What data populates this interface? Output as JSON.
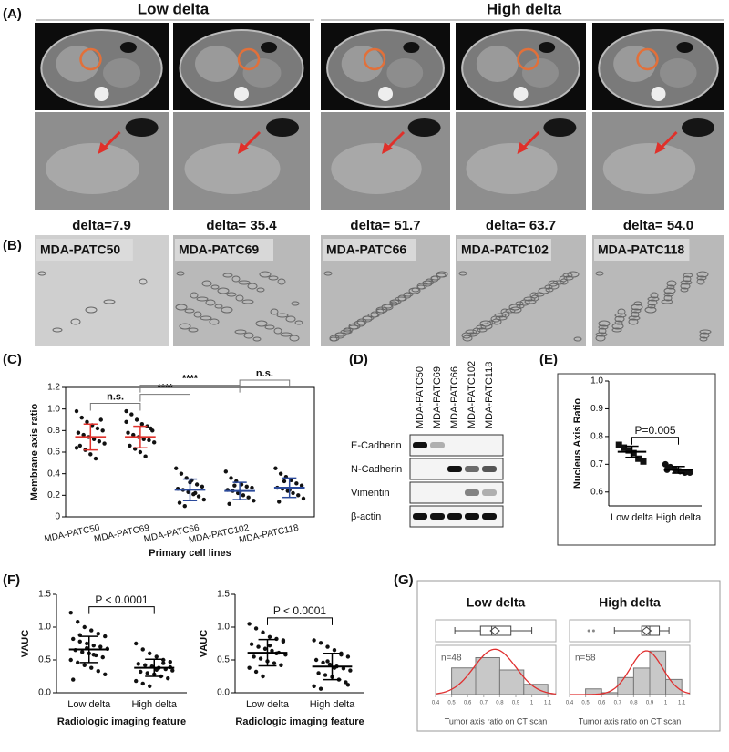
{
  "panel_labels": [
    "(A)",
    "(B)",
    "(C)",
    "(D)",
    "(E)",
    "(F)",
    "(G)"
  ],
  "panel_a": {
    "groups": [
      "Low delta",
      "High delta"
    ],
    "deltas": [
      "delta=7.9",
      "delta= 35.4",
      "delta= 51.7",
      "delta= 63.7",
      "delta= 54.0"
    ]
  },
  "panel_b": {
    "cell_lines": [
      "MDA-PATC50",
      "MDA-PATC69",
      "MDA-PATC66",
      "MDA-PATC102",
      "MDA-PATC118"
    ]
  },
  "panel_d": {
    "lanes": [
      "MDA-PATC50",
      "MDA-PATC69",
      "MDA-PATC66",
      "MDA-PATC102",
      "MDA-PATC118"
    ],
    "rows": [
      "E-Cadherin",
      "N-Cadherin",
      "Vimentin",
      "β-actin"
    ]
  },
  "chart_data": [
    {
      "type": "dotplot",
      "xlabel": "Primary cell lines",
      "ylabel": "Membrane axis ratio",
      "categories": [
        "MDA-PATC50",
        "MDA-PATC69",
        "MDA-PATC66",
        "MDA-PATC102",
        "MDA-PATC118"
      ],
      "ylim": [
        0,
        1.2
      ],
      "yticks": [
        0,
        0.2,
        0.4,
        0.6,
        0.8,
        {
          "value": 1,
          "label": "1.0"
        },
        1.2
      ],
      "means": [
        0.74,
        0.74,
        0.25,
        0.24,
        0.27
      ],
      "sd": [
        0.12,
        0.1,
        0.1,
        0.08,
        0.09
      ],
      "error_colors": [
        "#e0302a",
        "#e0302a",
        "#2b4a9b",
        "#2b4a9b",
        "#2b4a9b"
      ],
      "points": [
        [
          0.98,
          0.92,
          0.88,
          0.85,
          0.82,
          0.8,
          0.78,
          0.76,
          0.74,
          0.72,
          0.7,
          0.68,
          0.66,
          0.62,
          0.58,
          0.54,
          0.9,
          0.64
        ],
        [
          0.98,
          0.95,
          0.9,
          0.86,
          0.84,
          0.8,
          0.78,
          0.76,
          0.74,
          0.72,
          0.71,
          0.69,
          0.66,
          0.63,
          0.6,
          0.56,
          0.82,
          0.88
        ],
        [
          0.45,
          0.4,
          0.36,
          0.34,
          0.3,
          0.28,
          0.26,
          0.25,
          0.23,
          0.21,
          0.19,
          0.16,
          0.13,
          0.1,
          0.32,
          0.22
        ],
        [
          0.42,
          0.36,
          0.33,
          0.3,
          0.28,
          0.27,
          0.25,
          0.24,
          0.22,
          0.2,
          0.18,
          0.15,
          0.12,
          0.29,
          0.23
        ],
        [
          0.45,
          0.4,
          0.37,
          0.34,
          0.31,
          0.29,
          0.27,
          0.26,
          0.24,
          0.22,
          0.2,
          0.17,
          0.14,
          0.33,
          0.25
        ]
      ],
      "annotations": [
        {
          "text": "n.s.",
          "between": [
            0,
            1
          ]
        },
        {
          "text": "****",
          "between": [
            1,
            2
          ]
        },
        {
          "text": "****",
          "between": [
            1,
            3
          ]
        },
        {
          "text": "n.s.",
          "between": [
            3,
            4
          ]
        }
      ]
    },
    {
      "type": "dotplot",
      "ylabel": "Nucleus Axis Ratio",
      "categories": [
        "Low delta",
        "High delta"
      ],
      "markers": [
        "square",
        "circle"
      ],
      "ylim": [
        0.55,
        1.0
      ],
      "yticks": [
        0.6,
        0.7,
        0.8,
        0.9,
        {
          "value": 1,
          "label": "1.0"
        }
      ],
      "means": [
        0.745,
        0.68
      ],
      "sd": [
        0.02,
        0.012
      ],
      "error_colors": [
        "#000",
        "#000"
      ],
      "points": [
        [
          0.77,
          0.76,
          0.75,
          0.74,
          0.72,
          0.71
        ],
        [
          0.7,
          0.69,
          0.68,
          0.675,
          0.67,
          0.67,
          0.68
        ]
      ],
      "annotations": [
        {
          "text": "P=0.005",
          "between": [
            0,
            1
          ]
        }
      ]
    },
    {
      "type": "dotplot",
      "xlabel": "Radiologic imaging feature",
      "ylabel": "VAUC",
      "categories": [
        "Low delta",
        "High delta"
      ],
      "ylim": [
        0,
        1.5
      ],
      "yticks": [
        {
          "value": 0,
          "label": "0.0"
        },
        0.5,
        {
          "value": 1,
          "label": "1.0"
        },
        1.5
      ],
      "means": [
        0.66,
        0.38
      ],
      "sd": [
        0.2,
        0.13
      ],
      "error_colors": [
        "#000",
        "#000"
      ],
      "points": [
        [
          1.22,
          1.08,
          1.0,
          0.95,
          0.9,
          0.86,
          0.82,
          0.78,
          0.75,
          0.72,
          0.7,
          0.67,
          0.65,
          0.62,
          0.6,
          0.57,
          0.54,
          0.5,
          0.46,
          0.42,
          0.38,
          0.33,
          0.28,
          0.2,
          0.88,
          0.68,
          0.58
        ],
        [
          0.75,
          0.66,
          0.6,
          0.55,
          0.5,
          0.47,
          0.44,
          0.42,
          0.4,
          0.38,
          0.36,
          0.34,
          0.32,
          0.3,
          0.28,
          0.25,
          0.22,
          0.18,
          0.14,
          0.1,
          0.35,
          0.45,
          0.39
        ]
      ],
      "annotations": [
        {
          "text": "P < 0.0001",
          "between": [
            0,
            1
          ]
        }
      ]
    },
    {
      "type": "dotplot",
      "xlabel": "Radiologic imaging feature",
      "ylabel": "VAUC",
      "categories": [
        "Low delta",
        "High delta"
      ],
      "ylim": [
        0,
        1.5
      ],
      "yticks": [
        {
          "value": 0,
          "label": "0.0"
        },
        0.5,
        {
          "value": 1,
          "label": "1.0"
        },
        1.5
      ],
      "means": [
        0.61,
        0.4
      ],
      "sd": [
        0.2,
        0.2
      ],
      "error_colors": [
        "#000",
        "#000"
      ],
      "points": [
        [
          1.05,
          0.98,
          0.92,
          0.85,
          0.82,
          0.78,
          0.74,
          0.7,
          0.67,
          0.64,
          0.61,
          0.58,
          0.55,
          0.52,
          0.48,
          0.45,
          0.42,
          0.38,
          0.32,
          0.25,
          0.72,
          0.6,
          0.8
        ],
        [
          0.8,
          0.76,
          0.7,
          0.65,
          0.6,
          0.55,
          0.5,
          0.46,
          0.43,
          0.4,
          0.37,
          0.34,
          0.3,
          0.27,
          0.24,
          0.2,
          0.16,
          0.1,
          0.06,
          0.48,
          0.38,
          0.58,
          0.12
        ]
      ],
      "annotations": [
        {
          "text": "P < 0.0001",
          "between": [
            0,
            1
          ]
        }
      ]
    },
    {
      "type": "histogram",
      "title": "Low delta",
      "note": "n=48",
      "n": 48,
      "xlabel": "Tumor axis ratio on CT scan",
      "bins": [
        0.5,
        0.65,
        0.8,
        0.95,
        1.1
      ],
      "counts": [
        13,
        18,
        12,
        5
      ],
      "color": "#c8c8c8",
      "curve_color": "#e03030",
      "fit": {
        "mean": 0.77,
        "sd": 0.13
      },
      "box": {
        "whisker_low": 0.52,
        "q1": 0.68,
        "median": 0.75,
        "q3": 0.87,
        "whisker_high": 1.0,
        "mean": 0.77,
        "outliers": []
      },
      "xlim": [
        0.4,
        1.15
      ],
      "xticks": [
        0.4,
        0.5,
        0.6,
        0.7,
        0.8,
        0.9,
        1,
        1.1
      ],
      "ylim": [
        0,
        24
      ]
    },
    {
      "type": "histogram",
      "title": "High delta",
      "note": "n=58",
      "n": 58,
      "xlabel": "Tumor axis ratio on CT scan",
      "bins": [
        0.5,
        0.6,
        0.7,
        0.8,
        0.9,
        1.0,
        1.1
      ],
      "counts": [
        3,
        1,
        9,
        14,
        23,
        8
      ],
      "color": "#c8c8c8",
      "curve_color": "#e03030",
      "fit": {
        "mean": 0.88,
        "sd": 0.1
      },
      "box": {
        "whisker_low": 0.68,
        "q1": 0.85,
        "median": 0.9,
        "q3": 0.96,
        "whisker_high": 1.02,
        "mean": 0.88,
        "outliers": [
          0.52,
          0.55
        ]
      },
      "xlim": [
        0.4,
        1.15
      ],
      "xticks": [
        0.4,
        0.5,
        0.6,
        0.7,
        0.8,
        0.9,
        1,
        1.1
      ],
      "ylim": [
        0,
        26
      ]
    }
  ]
}
